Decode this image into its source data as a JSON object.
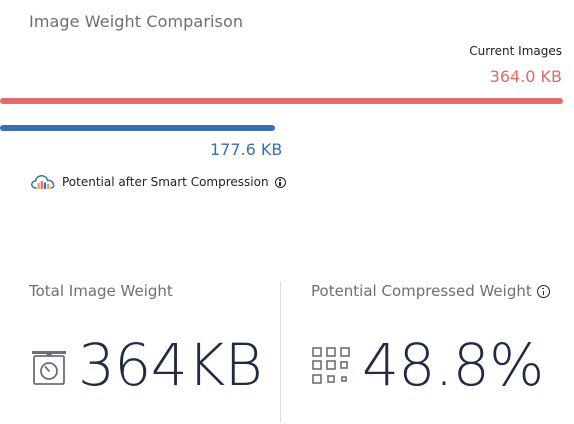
{
  "widget": {
    "title": "Image Weight Comparison",
    "current": {
      "label": "Current Images",
      "value": "364.0 KB",
      "fraction": 1.0,
      "color": "#e46b6b"
    },
    "potential": {
      "value": "177.6 KB",
      "fraction": 0.488,
      "color": "#3a6fb0",
      "note": "Potential after Smart Compression"
    }
  },
  "stats": {
    "total": {
      "label": "Total Image Weight",
      "value": "364KB",
      "icon": "scale-icon"
    },
    "compressed": {
      "label": "Potential Compressed Weight",
      "value": "48.8%",
      "icon": "grid-icon"
    }
  }
}
